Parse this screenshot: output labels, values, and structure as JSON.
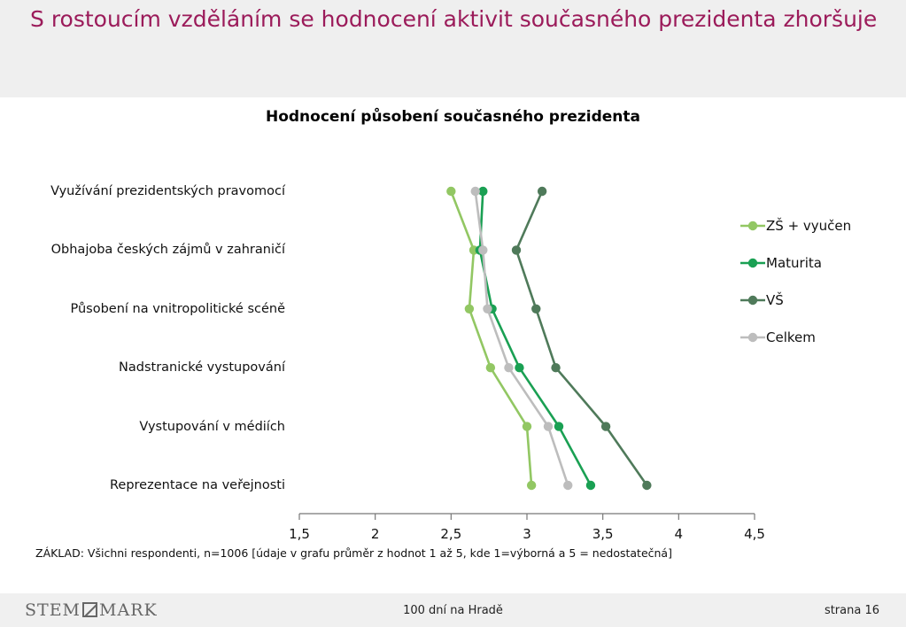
{
  "slide": {
    "title": "S rostoucím vzděláním se hodnocení aktivit současného prezidenta zhoršuje"
  },
  "chart_data": {
    "type": "line",
    "title": "Hodnocení působení současného prezidenta",
    "categories": [
      "Využívání prezidentských pravomocí",
      "Obhajoba českých zájmů v zahraničí",
      "Působení na vnitropolitické scéně",
      "Nadstranické vystupování",
      "Vystupování v médiích",
      "Reprezentace na veřejnosti"
    ],
    "orientation": "horizontal",
    "xlim": [
      1.5,
      4.5
    ],
    "xticks": [
      "1,5",
      "2",
      "2,5",
      "3",
      "3,5",
      "4",
      "4,5"
    ],
    "xtick_values": [
      1.5,
      2,
      2.5,
      3,
      3.5,
      4,
      4.5
    ],
    "grid": false,
    "legend_position": "right",
    "series": [
      {
        "name": "ZŠ + vyučen",
        "color": "#92c763",
        "values": [
          2.5,
          2.65,
          2.62,
          2.76,
          3.0,
          3.03
        ]
      },
      {
        "name": "Maturita",
        "color": "#1aa053",
        "values": [
          2.71,
          2.69,
          2.77,
          2.95,
          3.21,
          3.42
        ]
      },
      {
        "name": "VŠ",
        "color": "#4f7a5a",
        "values": [
          3.1,
          2.93,
          3.06,
          3.19,
          3.52,
          3.79
        ]
      },
      {
        "name": "Celkem",
        "color": "#bdbdbd",
        "values": [
          2.66,
          2.71,
          2.74,
          2.88,
          3.14,
          3.27
        ]
      }
    ]
  },
  "basis_note": "ZÁKLAD: Všichni respondenti, n=1006 [údaje v grafu průměr z hodnot 1 až 5, kde 1=výborná a 5 = nedostatečná]",
  "footer": {
    "logo_left": "STEM",
    "logo_right": "MARK",
    "center": "100 dní na Hradě",
    "page": "strana 16"
  }
}
